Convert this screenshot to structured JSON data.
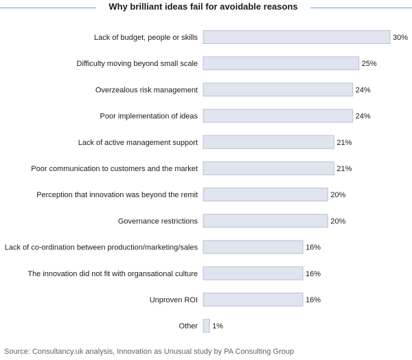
{
  "title": "Why brilliant ideas fail for avoidable reasons",
  "source": "Source: Consultancy.uk analysis, Innovation as Unusual study by PA Consulting Group",
  "colors": {
    "bar_fill": "#dfe4ef",
    "bar_stroke": "#b9c1d1",
    "title_rule": "#6a9fd0"
  },
  "chart_data": {
    "type": "bar",
    "orientation": "horizontal",
    "title": "Why brilliant ideas fail for avoidable reasons",
    "xlabel": "",
    "ylabel": "",
    "value_suffix": "%",
    "xlim": [
      0,
      30
    ],
    "categories": [
      "Lack of budget, people or skills",
      "Difficulty moving beyond small scale",
      "Overzealous risk management",
      "Poor implementation of ideas",
      "Lack of active management support",
      "Poor communication to customers and the market",
      "Perception that innovation was beyond the remit",
      "Governance restrictions",
      "Lack of co-ordination between production/marketing/sales",
      "The innovation did not fit with organsational culture",
      "Unproven ROI",
      "Other"
    ],
    "values": [
      30,
      25,
      24,
      24,
      21,
      21,
      20,
      20,
      16,
      16,
      16,
      1
    ],
    "data_labels": [
      "30%",
      "25%",
      "24%",
      "24%",
      "21%",
      "21%",
      "20%",
      "20%",
      "16%",
      "16%",
      "16%",
      "1%"
    ],
    "grid": false,
    "legend": "none"
  }
}
